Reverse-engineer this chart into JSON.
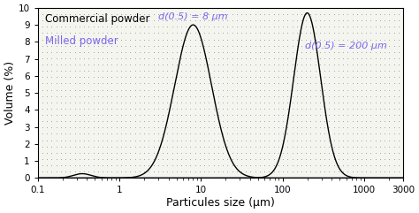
{
  "xlabel": "Particules size (μm)",
  "ylabel": "Volume (%)",
  "xlim": [
    0.1,
    3000
  ],
  "ylim": [
    0,
    10
  ],
  "yticks": [
    0,
    1,
    2,
    3,
    4,
    5,
    6,
    7,
    8,
    9,
    10
  ],
  "curve1_peak": 8,
  "curve1_sigma": 0.52,
  "curve1_height": 9.0,
  "curve1_small_peak": 0.35,
  "curve1_small_sigma": 0.25,
  "curve1_small_height": 0.25,
  "curve2_peak": 200,
  "curve2_sigma": 0.38,
  "curve2_height": 9.7,
  "curve_color": "#000000",
  "bg_color": "#f5f5f0",
  "dot_color": "#999999",
  "dot_nx": 80,
  "dot_ny": 28,
  "dot_size": 0.5,
  "label_commercial": "Commercial powder",
  "label_milled": "Milled powder",
  "label_milled_color": "#7b68ee",
  "annotation1": "d(0.5) = 8 μm",
  "annotation2": "d(0.5) = 200 μm",
  "annotation_color": "#7b68ee",
  "ann1_x": 8,
  "ann1_y": 9.2,
  "ann2_x": 600,
  "ann2_y": 7.5
}
